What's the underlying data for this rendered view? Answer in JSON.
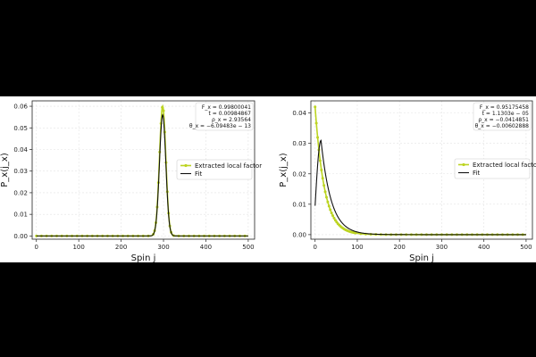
{
  "chart_data": [
    {
      "type": "line",
      "xlabel": "Spin j",
      "ylabel": "P_x(j_x)",
      "xlim": [
        -10,
        515
      ],
      "ylim": [
        -0.0015,
        0.0625
      ],
      "xticks": [
        0,
        100,
        200,
        300,
        400,
        500
      ],
      "yticks": [
        0.0,
        0.01,
        0.02,
        0.03,
        0.04,
        0.05,
        0.06
      ],
      "ytick_labels": [
        "0.00",
        "0.01",
        "0.02",
        "0.03",
        "0.04",
        "0.05",
        "0.06"
      ],
      "grid": true,
      "legend_position": "center-right",
      "annotation": [
        "F_x = 0.99800041",
        "t = 0.00984867",
        "ρ_x = 2.93564",
        "θ_x = −6.09483e − 13"
      ],
      "series": [
        {
          "name": "Extracted local factor",
          "style": "markers-line",
          "color": "#bcd421",
          "model": "gaussian",
          "peak_x": 298,
          "peak_y": 0.06,
          "width": 7.5,
          "x_range": [
            0,
            500
          ]
        },
        {
          "name": "Fit",
          "style": "line",
          "color": "#111111",
          "model": "gaussian",
          "peak_x": 298,
          "peak_y": 0.056,
          "width": 7.5,
          "x_range": [
            0,
            500
          ]
        }
      ]
    },
    {
      "type": "line",
      "xlabel": "Spin j",
      "ylabel": "P_x(j_x)",
      "xlim": [
        -10,
        515
      ],
      "ylim": [
        -0.0015,
        0.044
      ],
      "xticks": [
        0,
        100,
        200,
        300,
        400,
        500
      ],
      "yticks": [
        0.0,
        0.01,
        0.02,
        0.03,
        0.04
      ],
      "ytick_labels": [
        "0.00",
        "0.01",
        "0.02",
        "0.03",
        "0.04"
      ],
      "grid": true,
      "legend_position": "center-right",
      "annotation": [
        "F_x = 0.95175458",
        "t = 1.1303e − 05",
        "ρ_x = −0.0414851",
        "θ_x = −0.00602888"
      ],
      "series": [
        {
          "name": "Extracted local factor",
          "style": "markers-line",
          "color": "#bcd421",
          "model": "exp-decay",
          "start_y": 0.042,
          "decay": 22,
          "x_range": [
            0,
            500
          ]
        },
        {
          "name": "Fit",
          "style": "line",
          "color": "#111111",
          "model": "rise-decay",
          "start_y": 0.0095,
          "peak_x": 14,
          "peak_y": 0.031,
          "decay": 24,
          "x_range": [
            0,
            500
          ]
        }
      ]
    }
  ]
}
